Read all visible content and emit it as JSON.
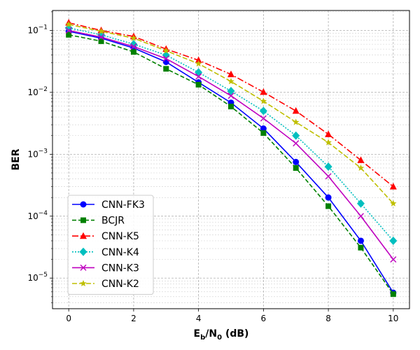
{
  "chart_data": {
    "type": "line",
    "title": "",
    "xlabel": "E",
    "xlabel_parts": {
      "base1": "E",
      "sub1": "b",
      "mid": "/N",
      "sub2": "0",
      "tail": " (dB)"
    },
    "ylabel": "BER",
    "yscale": "log",
    "xlim": [
      -0.5,
      10.5
    ],
    "ylim": [
      3.2e-06,
      0.21
    ],
    "grid": true,
    "legend_position": "lower-left",
    "x_ticks": [
      0,
      2,
      4,
      6,
      8,
      10
    ],
    "x_tick_labels": [
      "0",
      "2",
      "4",
      "6",
      "8",
      "10"
    ],
    "y_ticks": [
      0.1,
      0.01,
      0.001,
      0.0001,
      1e-05
    ],
    "y_tick_bases": [
      "10",
      "10",
      "10",
      "10",
      "10"
    ],
    "y_tick_exps": [
      "−1",
      "−2",
      "−3",
      "−4",
      "−5"
    ],
    "x": [
      0,
      1,
      2,
      3,
      4,
      5,
      6,
      7,
      8,
      9,
      10
    ],
    "series": [
      {
        "name": "CNN-FK3",
        "color": "#0000ff",
        "dash": "",
        "marker": "circle",
        "values": [
          0.097,
          0.075,
          0.052,
          0.031,
          0.0145,
          0.0068,
          0.0026,
          0.00075,
          0.0002,
          4e-05,
          5.8e-06
        ]
      },
      {
        "name": "BCJR",
        "color": "#008000",
        "dash": "6,3",
        "marker": "square",
        "values": [
          0.085,
          0.067,
          0.045,
          0.024,
          0.0133,
          0.0059,
          0.0022,
          0.0006,
          0.000145,
          3.1e-05,
          5.5e-06
        ]
      },
      {
        "name": "CNN-K5",
        "color": "#ff0000",
        "dash": "9,3,2,3",
        "marker": "triangle",
        "values": [
          0.133,
          0.1,
          0.08,
          0.05,
          0.033,
          0.0195,
          0.0101,
          0.005,
          0.0021,
          0.0008,
          0.0003
        ]
      },
      {
        "name": "CNN-K4",
        "color": "#00bfbf",
        "dash": "2,2",
        "marker": "diamond",
        "values": [
          0.11,
          0.085,
          0.06,
          0.04,
          0.021,
          0.0105,
          0.005,
          0.002,
          0.00063,
          0.00016,
          4e-05
        ]
      },
      {
        "name": "CNN-K3",
        "color": "#bf00bf",
        "dash": "",
        "marker": "x",
        "values": [
          0.1,
          0.078,
          0.055,
          0.035,
          0.018,
          0.0088,
          0.0038,
          0.0015,
          0.00044,
          0.0001,
          2e-05
        ]
      },
      {
        "name": "CNN-K2",
        "color": "#bfbf00",
        "dash": "7,3",
        "marker": "star",
        "values": [
          0.125,
          0.097,
          0.075,
          0.047,
          0.029,
          0.015,
          0.0072,
          0.0033,
          0.00155,
          0.0006,
          0.00016
        ]
      }
    ]
  }
}
